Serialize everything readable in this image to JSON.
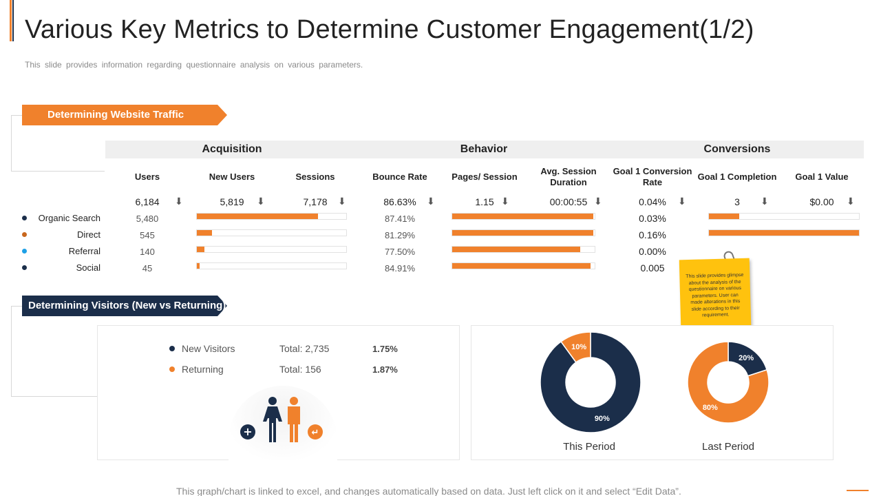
{
  "title": "Various Key Metrics to Determine Customer Engagement(1/2)",
  "subtitle": "This slide provides information regarding questionnaire analysis on various parameters.",
  "section_traffic": "Determining Website Traffic",
  "section_visitors": "Determining Visitors (New vs Returning)",
  "groups": [
    "Acquisition",
    "Behavior",
    "Conversions"
  ],
  "columns": [
    "Users",
    "New Users",
    "Sessions",
    "Bounce Rate",
    "Pages/ Session",
    "Avg. Session Duration",
    "Goal 1 Conversion Rate",
    "Goal 1 Completion",
    "Goal 1 Value"
  ],
  "totals": [
    "6,184",
    "5,819",
    "7,178",
    "86.63%",
    "1.15",
    "00:00:55",
    "0.04%",
    "3",
    "$0.00"
  ],
  "arrow_glyph": "⬇",
  "colors": {
    "orange": "#f0812c",
    "navy": "#1b2e4a",
    "referral": "#1ea0e6"
  },
  "chart_data": [
    {
      "type": "table",
      "rows": [
        {
          "channel": "Organic Search",
          "dot_color": "#1b2e4a",
          "users": "5,480",
          "users_value": 5480,
          "new_users_share": 0.81,
          "bounce_rate": "87.41%",
          "pages_session_share": 0.99,
          "goal_conv_rate": "0.03%",
          "goal_completion_share": 0.2
        },
        {
          "channel": "Direct",
          "dot_color": "#c8671d",
          "users": "545",
          "users_value": 545,
          "new_users_share": 0.1,
          "bounce_rate": "81.29%",
          "pages_session_share": 0.99,
          "goal_conv_rate": "0.16%",
          "goal_completion_share": 1.0
        },
        {
          "channel": "Referral",
          "dot_color": "#1ea0e6",
          "users": "140",
          "users_value": 140,
          "new_users_share": 0.05,
          "bounce_rate": "77.50%",
          "pages_session_share": 0.9,
          "goal_conv_rate": "0.00%",
          "goal_completion_share": null
        },
        {
          "channel": "Social",
          "dot_color": "#1b2e4a",
          "users": "45",
          "users_value": 45,
          "new_users_share": 0.02,
          "bounce_rate": "84.91%",
          "pages_session_share": 0.97,
          "goal_conv_rate": "0.005",
          "goal_completion_share": null
        }
      ]
    },
    {
      "type": "pie",
      "label": "This Period",
      "slices": [
        {
          "value": 90,
          "label": "90%",
          "color": "#1b2e4a"
        },
        {
          "value": 10,
          "label": "10%",
          "color": "#f0812c"
        }
      ]
    },
    {
      "type": "pie",
      "label": "Last Period",
      "slices": [
        {
          "value": 20,
          "label": "20%",
          "color": "#1b2e4a"
        },
        {
          "value": 80,
          "label": "80%",
          "color": "#f0812c"
        }
      ]
    }
  ],
  "visitors": [
    {
      "name": "New Visitors",
      "total": "Total: 2,735",
      "pct": "1.75%",
      "color": "#1b2e4a"
    },
    {
      "name": "Returning",
      "total": "Total: 156",
      "pct": "1.87%",
      "color": "#f0812c"
    }
  ],
  "sticky_note": "This slide provides glimpse about the analysis of the questionnaire on various parameters. User can made alterations in this slide according to their requirement.",
  "icons": {
    "plus": "+",
    "return": "↵"
  },
  "footer": "This graph/chart is linked to excel, and changes automatically based on data. Just left click on it and select “Edit Data”."
}
